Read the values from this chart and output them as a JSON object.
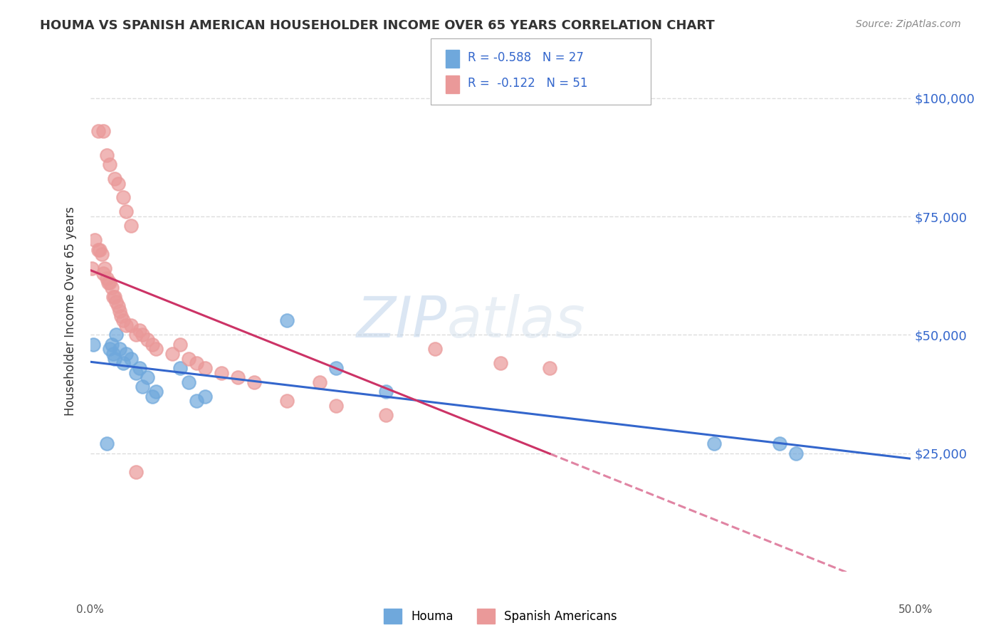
{
  "title": "HOUMA VS SPANISH AMERICAN HOUSEHOLDER INCOME OVER 65 YEARS CORRELATION CHART",
  "source": "Source: ZipAtlas.com",
  "ylabel": "Householder Income Over 65 years",
  "ytick_labels": [
    "$25,000",
    "$50,000",
    "$75,000",
    "$100,000"
  ],
  "ytick_values": [
    25000,
    50000,
    75000,
    100000
  ],
  "ylim": [
    0,
    110000
  ],
  "xlim": [
    0.0,
    0.5
  ],
  "houma_color": "#6fa8dc",
  "spanish_color": "#ea9999",
  "houma_line_color": "#3366cc",
  "spanish_line_color": "#cc3366",
  "legend_R_houma": "R = -0.588",
  "legend_N_houma": "N = 27",
  "legend_R_spanish": "R =  -0.122",
  "legend_N_spanish": "N = 51",
  "houma_x": [
    0.002,
    0.01,
    0.012,
    0.013,
    0.014,
    0.015,
    0.016,
    0.018,
    0.02,
    0.022,
    0.025,
    0.028,
    0.03,
    0.032,
    0.035,
    0.038,
    0.04,
    0.055,
    0.06,
    0.065,
    0.07,
    0.12,
    0.15,
    0.18,
    0.38,
    0.42,
    0.43
  ],
  "houma_y": [
    48000,
    27000,
    47000,
    48000,
    46000,
    45000,
    50000,
    47000,
    44000,
    46000,
    45000,
    42000,
    43000,
    39000,
    41000,
    37000,
    38000,
    43000,
    40000,
    36000,
    37000,
    53000,
    43000,
    38000,
    27000,
    27000,
    25000
  ],
  "spanish_x": [
    0.001,
    0.003,
    0.005,
    0.006,
    0.007,
    0.008,
    0.009,
    0.01,
    0.011,
    0.012,
    0.013,
    0.014,
    0.015,
    0.016,
    0.017,
    0.018,
    0.019,
    0.02,
    0.022,
    0.025,
    0.028,
    0.03,
    0.032,
    0.035,
    0.038,
    0.04,
    0.05,
    0.055,
    0.06,
    0.065,
    0.07,
    0.08,
    0.09,
    0.1,
    0.12,
    0.14,
    0.15,
    0.18,
    0.21,
    0.25,
    0.28,
    0.005,
    0.008,
    0.01,
    0.012,
    0.015,
    0.017,
    0.02,
    0.022,
    0.025,
    0.028
  ],
  "spanish_y": [
    64000,
    70000,
    68000,
    68000,
    67000,
    63000,
    64000,
    62000,
    61000,
    61000,
    60000,
    58000,
    58000,
    57000,
    56000,
    55000,
    54000,
    53000,
    52000,
    52000,
    50000,
    51000,
    50000,
    49000,
    48000,
    47000,
    46000,
    48000,
    45000,
    44000,
    43000,
    42000,
    41000,
    40000,
    36000,
    40000,
    35000,
    33000,
    47000,
    44000,
    43000,
    93000,
    93000,
    88000,
    86000,
    83000,
    82000,
    79000,
    76000,
    73000,
    21000
  ],
  "background_color": "#ffffff",
  "watermark_zip": "ZIP",
  "watermark_atlas": "atlas",
  "grid_color": "#dddddd"
}
